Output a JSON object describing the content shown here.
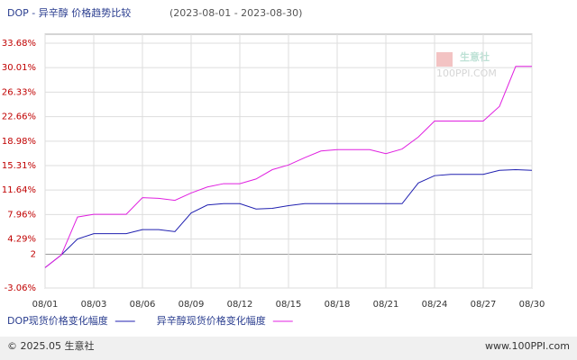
{
  "chart_data": {
    "type": "line",
    "title": "DOP - 异辛醇 价格趋势比较",
    "subtitle": "(2023-08-01 - 2023-08-30)",
    "categories": [
      "08/01",
      null,
      null,
      "08/03",
      null,
      null,
      "08/06",
      null,
      null,
      "08/09",
      null,
      null,
      "08/12",
      null,
      null,
      "08/15",
      null,
      null,
      "08/18",
      null,
      null,
      "08/21",
      null,
      null,
      "08/24",
      null,
      null,
      "08/27",
      null,
      null,
      "08/30"
    ],
    "series": [
      {
        "name": "DOP现货价格变化幅度",
        "color": "#2020b0",
        "values": [
          0,
          1.9,
          4.3,
          5.1,
          5.1,
          5.1,
          5.7,
          5.7,
          5.4,
          8.2,
          9.4,
          9.6,
          9.6,
          8.8,
          8.9,
          9.3,
          9.6,
          9.6,
          9.6,
          9.6,
          9.6,
          9.6,
          9.6,
          12.7,
          13.8,
          14.0,
          14.0,
          14.0,
          14.6,
          14.7,
          14.6
        ]
      },
      {
        "name": "异辛醇现货价格变化幅度",
        "color": "#e020e0",
        "values": [
          0,
          1.9,
          7.6,
          8.0,
          8.0,
          8.0,
          10.5,
          10.4,
          10.1,
          11.2,
          12.1,
          12.6,
          12.6,
          13.3,
          14.7,
          15.4,
          16.5,
          17.5,
          17.7,
          17.7,
          17.7,
          17.1,
          17.8,
          19.6,
          22.0,
          22.0,
          22.0,
          22.0,
          24.2,
          30.2,
          30.2
        ]
      }
    ],
    "ylim": [
      -3.06,
      33.68
    ],
    "yticks": [
      {
        "value": -3.06,
        "label": "-3.06%"
      },
      2,
      {
        "value": 4.29,
        "label": "4.29%"
      },
      {
        "value": 7.96,
        "label": "7.96%"
      },
      {
        "value": 11.64,
        "label": "11.64%"
      },
      {
        "value": 15.31,
        "label": "15.31%"
      },
      {
        "value": 18.98,
        "label": "18.98%"
      },
      {
        "value": 22.66,
        "label": "22.66%"
      },
      {
        "value": 26.33,
        "label": "26.33%"
      },
      {
        "value": 30.01,
        "label": "30.01%"
      },
      {
        "value": 33.68,
        "label": "33.68%"
      }
    ],
    "grid": true,
    "watermark": [
      "生意社",
      "100PPI.COM"
    ],
    "footer": {
      "left": "© 2025.05 生意社",
      "right": "www.100PPI.com"
    }
  }
}
